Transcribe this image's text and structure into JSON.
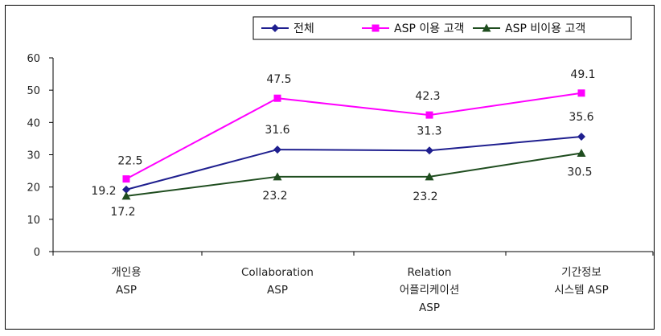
{
  "chart_data": {
    "type": "line",
    "categories": [
      [
        "개인용",
        "ASP"
      ],
      [
        "Collaboration",
        "ASP"
      ],
      [
        "Relation",
        "어플리케이션",
        "ASP"
      ],
      [
        "기간정보",
        "시스템 ASP"
      ]
    ],
    "series": [
      {
        "name": "전체",
        "values": [
          19.2,
          31.6,
          31.3,
          35.6
        ],
        "color": "#1f1f8f",
        "marker": "diamond"
      },
      {
        "name": "ASP 이용 고객",
        "values": [
          22.5,
          47.5,
          42.3,
          49.1
        ],
        "color": "#ff00ff",
        "marker": "square"
      },
      {
        "name": "ASP 비이용 고객",
        "values": [
          17.2,
          23.2,
          23.2,
          30.5
        ],
        "color": "#1f4d1f",
        "marker": "triangle"
      }
    ],
    "data_labels": [
      [
        "19.2",
        "31.6",
        "31.3",
        "35.6"
      ],
      [
        "22.5",
        "47.5",
        "42.3",
        "49.1"
      ],
      [
        "17.2",
        "23.2",
        "23.2",
        "30.5"
      ]
    ],
    "yticks": [
      "60",
      "50",
      "40",
      "30",
      "20",
      "10",
      "0"
    ],
    "ylim": [
      0,
      60
    ],
    "title": "",
    "xlabel": "",
    "ylabel": "",
    "grid": false,
    "legend_position": "top-right"
  }
}
